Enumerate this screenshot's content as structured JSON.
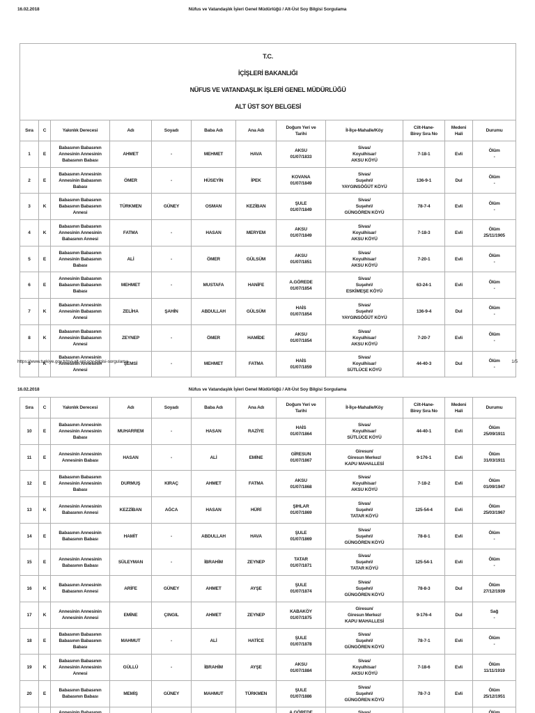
{
  "header": {
    "date": "16.02.2018",
    "title": "Nüfus ve Vatandaşlık İşleri Genel Müdürlüğü / Alt-Üst Soy Bilgisi Sorgulama"
  },
  "document_title": [
    "T.C.",
    "İÇİŞLERİ BAKANLIĞI",
    "NÜFUS VE VATANDAŞLIK İŞLERİ GENEL MÜDÜRLÜĞÜ",
    "ALT ÜST SOY BELGESİ"
  ],
  "table": {
    "columns": [
      "Sıra",
      "C",
      "Yakınlık Derecesi",
      "Adı",
      "Soyadı",
      "Baba Adı",
      "Ana Adı",
      "Doğum Yeri ve\nTarihi",
      "İl-İlçe-Mahalle/Köy",
      "Cilt-Hane-\nBirey Sıra No",
      "Medeni\nHali",
      "Durumu"
    ],
    "rows_page1": [
      [
        "1",
        "E",
        "Babasının Babasının Annesinin Annesinin Babasının Babası",
        "AHMET",
        "-",
        "MEHMET",
        "HAVA",
        "AKSU\n01/07/1833",
        "Sivas/\nKoyulhisar/\nAKSU KÖYÜ",
        "7-18-1",
        "Evli",
        "Ölüm\n-"
      ],
      [
        "2",
        "E",
        "Babasının Annesinin Annesinin Babasının Babası",
        "ÖMER",
        "-",
        "HÜSEYİN",
        "İPEK",
        "KOVANA\n01/07/1849",
        "Sivas/\nSuşehri/\nYAYGINSÖĞÜT KÖYÜ",
        "136-9-1",
        "Dul",
        "Ölüm\n-"
      ],
      [
        "3",
        "K",
        "Babasının Babasının Babasının Babasının Annesi",
        "TÜRKMEN",
        "GÜNEY",
        "OSMAN",
        "KEZİBAN",
        "ŞULE\n01/07/1849",
        "Sivas/\nSuşehri/\nGÜNGÖREN KÖYÜ",
        "78-7-4",
        "Evli",
        "Ölüm\n-"
      ],
      [
        "4",
        "K",
        "Babasının Babasının Annesinin Annesinin Babasının Annesi",
        "FATMA",
        "-",
        "HASAN",
        "MERYEM",
        "AKSU\n01/07/1849",
        "Sivas/\nKoyulhisar/\nAKSU KÖYÜ",
        "7-18-3",
        "Evli",
        "Ölüm\n25/11/1905"
      ],
      [
        "5",
        "E",
        "Babasının Babasının Annesinin Babasının Babası",
        "ALİ",
        "-",
        "ÖMER",
        "GÜLSÜM",
        "AKSU\n01/07/1851",
        "Sivas/\nKoyulhisar/\nAKSU KÖYÜ",
        "7-20-1",
        "Evli",
        "Ölüm\n-"
      ],
      [
        "6",
        "E",
        "Annesinin Babasının Babasının Babasının Babası",
        "MEHMET",
        "-",
        "MUSTAFA",
        "HANİFE",
        "A.GÖREDE\n01/07/1854",
        "Sivas/\nSuşehri/\nESKİMEŞE KÖYÜ",
        "63-24-1",
        "Evli",
        "Ölüm\n-"
      ],
      [
        "7",
        "K",
        "Babasının Annesinin Annesinin Babasının Annesi",
        "ZELİHA",
        "ŞAHİN",
        "ABDULLAH",
        "GÜLSÜM",
        "HAİS\n01/07/1854",
        "Sivas/\nSuşehri/\nYAYGINSÖĞÜT KÖYÜ",
        "136-9-4",
        "Dul",
        "Ölüm\n-"
      ],
      [
        "8",
        "K",
        "Babasının Babasının Annesinin Babasının Annesi",
        "ZEYNEP",
        "-",
        "ÖMER",
        "HAMİDE",
        "AKSU\n01/07/1854",
        "Sivas/\nKoyulhisar/\nAKSU KÖYÜ",
        "7-20-7",
        "Evli",
        "Ölüm\n-"
      ],
      [
        "9",
        "K",
        "Babasının Annesinin Annesinin Annesinin Annesi",
        "ŞEMSİ",
        "-",
        "MEHMET",
        "FATMA",
        "HAİS\n01/07/1859",
        "Sivas/\nKoyulhisar/\nSÜTLÜCE KÖYÜ",
        "44-40-3",
        "Dul",
        "Ölüm\n-"
      ]
    ],
    "rows_page2": [
      [
        "10",
        "E",
        "Babasının Annesinin Annesinin Annesinin Babası",
        "MUHARREM",
        "-",
        "HASAN",
        "RAZİYE",
        "HAİS\n01/07/1864",
        "Sivas/\nKoyulhisar/\nSÜTLÜCE KÖYÜ",
        "44-40-1",
        "Evli",
        "Ölüm\n25/09/1911"
      ],
      [
        "11",
        "E",
        "Annesinin Annesinin Annesinin Babası",
        "HASAN",
        "-",
        "ALİ",
        "EMİNE",
        "GİRESUN\n01/07/1867",
        "Giresun/\nGiresun Merkez/\nKAPU MAHALLESİ",
        "9-176-1",
        "Evli",
        "Ölüm\n31/03/1911"
      ],
      [
        "12",
        "E",
        "Babasının Babasının Annesinin Annesinin Babası",
        "DURMUŞ",
        "KIRAÇ",
        "AHMET",
        "FATMA",
        "AKSU\n01/07/1868",
        "Sivas/\nKoyulhisar/\nAKSU KÖYÜ",
        "7-18-2",
        "Evli",
        "Ölüm\n01/09/1947"
      ],
      [
        "13",
        "K",
        "Annesinin Annesinin Babasının Annesi",
        "KEZZİBAN",
        "AĞCA",
        "HASAN",
        "HÜRİ",
        "ŞIHLAR\n01/07/1869",
        "Sivas/\nSuşehri/\nTATAR KÖYÜ",
        "125-54-4",
        "Evli",
        "Ölüm\n25/03/1967"
      ],
      [
        "14",
        "E",
        "Babasının Annesinin Babasının Babası",
        "HAMİT",
        "-",
        "ABDULLAH",
        "HAVA",
        "ŞULE\n01/07/1869",
        "Sivas/\nSuşehri/\nGÜNGÖREN KÖYÜ",
        "78-8-1",
        "Evli",
        "Ölüm\n-"
      ],
      [
        "15",
        "E",
        "Annesinin Annesinin Babasının Babası",
        "SÜLEYMAN",
        "-",
        "İBRAHİM",
        "ZEYNEP",
        "TATAR\n01/07/1871",
        "Sivas/\nSuşehri/\nTATAR KÖYÜ",
        "125-54-1",
        "Evli",
        "Ölüm\n-"
      ],
      [
        "16",
        "K",
        "Babasının Annesinin Babasının Annesi",
        "ARİFE",
        "GÜNEY",
        "AHMET",
        "AYŞE",
        "ŞULE\n01/07/1874",
        "Sivas/\nSuşehri/\nGÜNGÖREN KÖYÜ",
        "78-8-3",
        "Dul",
        "Ölüm\n27/12/1939"
      ],
      [
        "17",
        "K",
        "Annesinin Annesinin Annesinin Annesi",
        "EMİNE",
        "ÇINGIL",
        "AHMET",
        "ZEYNEP",
        "KABAKÖY\n01/07/1875",
        "Giresun/\nGiresun Merkez/\nKAPU MAHALLESİ",
        "9-176-4",
        "Dul",
        "Sağ\n-"
      ],
      [
        "18",
        "E",
        "Babasının Babasının Babasının Babasının Babası",
        "MAHMUT",
        "-",
        "ALİ",
        "HATİCE",
        "ŞULE\n01/07/1878",
        "Sivas/\nSuşehri/\nGÜNGÖREN KÖYÜ",
        "78-7-1",
        "Evli",
        "Ölüm\n-"
      ],
      [
        "19",
        "K",
        "Babasının Babasının Annesinin Annesinin Annesi",
        "GÜLLÜ",
        "-",
        "İBRAHİM",
        "AYŞE",
        "AKSU\n01/07/1884",
        "Sivas/\nKoyulhisar/\nAKSU KÖYÜ",
        "7-18-6",
        "Evli",
        "Ölüm\n11/11/1919"
      ],
      [
        "20",
        "E",
        "Babasının Babasının Babasının Babası",
        "MEMİŞ",
        "GÜNEY",
        "MAHMUT",
        "TÜRKMEN",
        "ŞULE\n01/07/1886",
        "Sivas/\nSuşehri/\nGÜNGÖREN KÖYÜ",
        "78-7-3",
        "Evli",
        "Ölüm\n25/12/1951"
      ]
    ],
    "rows_page2_partial": [
      [
        "",
        "",
        "Annesinin Babasının",
        "",
        "",
        "",
        "",
        "A.GÖREDE",
        "Sivas/",
        "",
        "",
        "Ölüm"
      ]
    ]
  },
  "footer": {
    "url": "https://www.turkiye.gov.tr/nvi-alt-ust-soy-bilgisi-sorgulama",
    "page_indicator": "1/5"
  }
}
